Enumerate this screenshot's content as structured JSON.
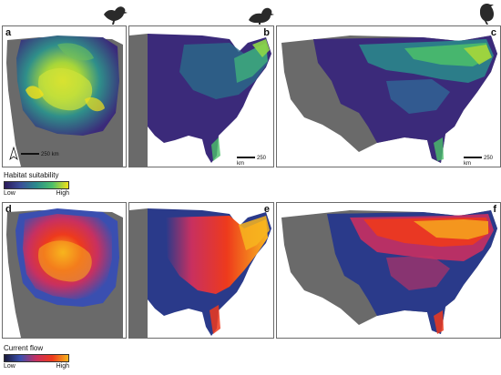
{
  "panels": {
    "a": "a",
    "b": "b",
    "c": "c",
    "d": "d",
    "e": "e",
    "f": "f"
  },
  "scale_bars": {
    "a": "250 km",
    "b": "250 km",
    "c": "250 km"
  },
  "north_arrow": "N",
  "legend_suitability": {
    "title": "Habitat suitability",
    "low": "Low",
    "high": "High",
    "colors": [
      "#2b1b5a",
      "#3b4f9a",
      "#2a8c8c",
      "#4cc06a",
      "#f2e11a"
    ]
  },
  "legend_flow": {
    "title": "Current flow",
    "low": "Low",
    "high": "High",
    "colors": [
      "#1a1a3a",
      "#3a4fb0",
      "#c83060",
      "#ee3a1c",
      "#f7b51e"
    ]
  },
  "icons": [
    "bird-silhouette-perched",
    "bird-silhouette-grouse",
    "bird-silhouette-crow"
  ],
  "palette": {
    "land_gray": "#666666",
    "ocean": "#ffffff",
    "suitability_low": "#3b2a7a",
    "suitability_high": "#f2e11a",
    "flow_low": "#2a3a8a",
    "flow_high": "#f7b51e"
  }
}
